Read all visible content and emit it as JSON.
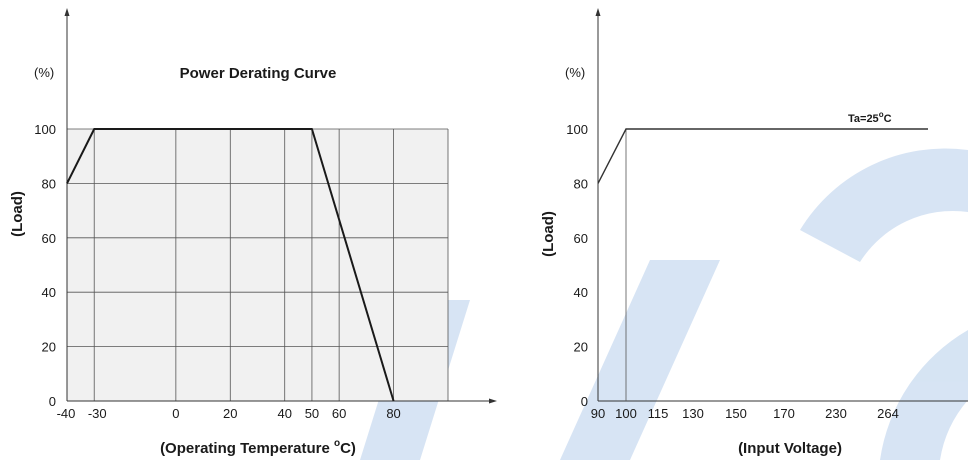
{
  "watermark_color": "#c9dbf0",
  "chart_data": [
    {
      "type": "line",
      "title": "Power Derating Curve",
      "unit_label": "(%)",
      "ylabel": "(Load)",
      "xlabel_main": "(Operating Temperature ",
      "xlabel_degree": "o",
      "xlabel_end": "C)",
      "x_ticks": [
        -40,
        -30,
        0,
        20,
        40,
        50,
        60,
        80
      ],
      "x_tick_labels": [
        "-40",
        "-30",
        "0",
        "20",
        "40",
        "50",
        "60",
        "80"
      ],
      "y_ticks": [
        0,
        20,
        40,
        60,
        80,
        100
      ],
      "y_tick_labels": [
        "0",
        "20",
        "40",
        "60",
        "80",
        "100"
      ],
      "xlim": [
        -40,
        100
      ],
      "ylim": [
        0,
        100
      ],
      "grid": true,
      "shaded": true,
      "series": [
        {
          "x": [
            -40,
            -30,
            50,
            80
          ],
          "y": [
            80,
            100,
            100,
            0
          ]
        }
      ]
    },
    {
      "type": "line",
      "unit_label": "(%)",
      "ylabel": "(Load)",
      "xlabel": "(Input Voltage)",
      "x_categories": [
        "90",
        "100",
        "115",
        "130",
        "150",
        "170",
        "230",
        "264"
      ],
      "y_ticks": [
        0,
        20,
        40,
        60,
        80,
        100
      ],
      "y_tick_labels": [
        "0",
        "20",
        "40",
        "60",
        "80",
        "100"
      ],
      "ylim": [
        0,
        100
      ],
      "grid": false,
      "annotation_main": "Ta=25",
      "annotation_degree": "o",
      "annotation_end": "C",
      "series": [
        {
          "x": [
            "90",
            "100",
            "264"
          ],
          "y": [
            80,
            100,
            100
          ]
        }
      ]
    }
  ]
}
